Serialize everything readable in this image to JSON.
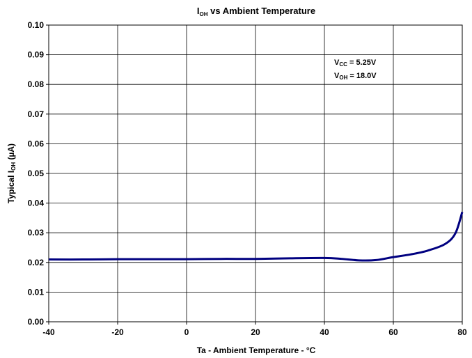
{
  "chart_data": {
    "type": "line",
    "title": {
      "main": "I",
      "sub": "OH",
      "rest": " vs Ambient Temperature"
    },
    "xlabel": "Ta - Ambient Temperature - °C",
    "ylabel": {
      "pre": "Typical I",
      "sub": "OH",
      "post": " (µA)"
    },
    "xlim": [
      -40,
      80
    ],
    "ylim": [
      0,
      0.1
    ],
    "x_ticks": [
      "-40",
      "-20",
      "0",
      "20",
      "40",
      "60",
      "80"
    ],
    "y_ticks": [
      "0.00",
      "0.01",
      "0.02",
      "0.03",
      "0.04",
      "0.05",
      "0.06",
      "0.07",
      "0.08",
      "0.09",
      "0.10"
    ],
    "grid": true,
    "line_color": "#000080",
    "annotations": [
      {
        "pre": "V",
        "sub": "CC",
        "post": " = 5.25V"
      },
      {
        "pre": "V",
        "sub": "OH",
        "post": " = 18.0V"
      }
    ],
    "series": [
      {
        "x": [
          -40,
          -30,
          -20,
          -10,
          0,
          10,
          20,
          30,
          40,
          45,
          50,
          55,
          60,
          65,
          70,
          75,
          78,
          80
        ],
        "y": [
          0.021,
          0.021,
          0.0211,
          0.0211,
          0.0211,
          0.0212,
          0.0212,
          0.0214,
          0.0215,
          0.0212,
          0.0207,
          0.0208,
          0.0218,
          0.0227,
          0.024,
          0.0262,
          0.0298,
          0.037
        ]
      }
    ]
  }
}
